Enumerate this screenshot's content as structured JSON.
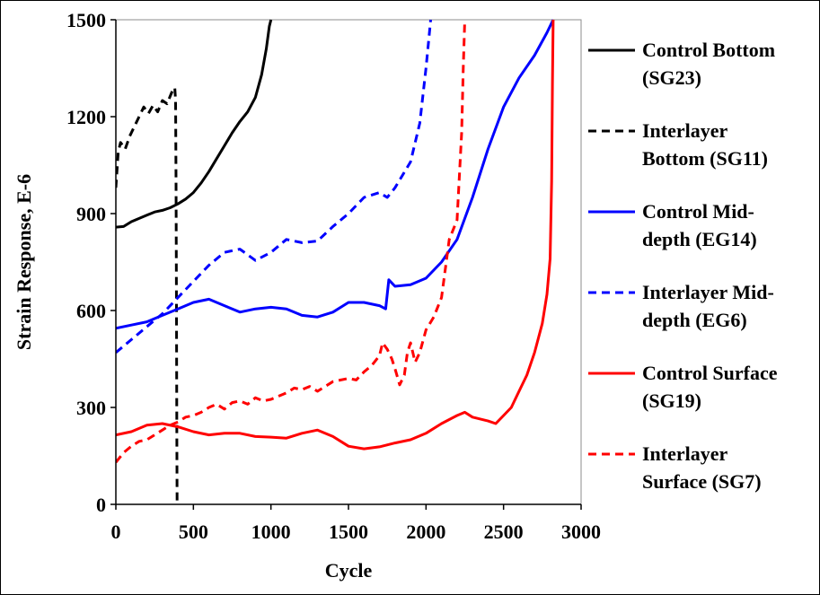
{
  "chart_data": {
    "type": "line",
    "title": "",
    "xlabel": "Cycle",
    "ylabel": "Strain Response, E-6",
    "xlim": [
      0,
      3000
    ],
    "ylim": [
      0,
      1500
    ],
    "xticks": [
      0,
      500,
      1000,
      1500,
      2000,
      2500,
      3000
    ],
    "yticks": [
      0,
      300,
      600,
      900,
      1200,
      1500
    ],
    "grid": false,
    "legend_position": "right",
    "series": [
      {
        "name": "Control Bottom\n(SG23)",
        "color": "#000000",
        "dash": "solid",
        "points": [
          [
            0,
            858
          ],
          [
            50,
            860
          ],
          [
            100,
            875
          ],
          [
            150,
            885
          ],
          [
            200,
            895
          ],
          [
            250,
            905
          ],
          [
            300,
            910
          ],
          [
            350,
            918
          ],
          [
            400,
            930
          ],
          [
            450,
            945
          ],
          [
            500,
            965
          ],
          [
            550,
            995
          ],
          [
            600,
            1030
          ],
          [
            650,
            1070
          ],
          [
            700,
            1110
          ],
          [
            750,
            1150
          ],
          [
            800,
            1185
          ],
          [
            850,
            1215
          ],
          [
            900,
            1260
          ],
          [
            940,
            1330
          ],
          [
            970,
            1410
          ],
          [
            990,
            1480
          ],
          [
            1000,
            1500
          ]
        ]
      },
      {
        "name": "Interlayer\nBottom (SG11)",
        "color": "#000000",
        "dash": "dashed",
        "points": [
          [
            0,
            980
          ],
          [
            15,
            1090
          ],
          [
            30,
            1120
          ],
          [
            60,
            1100
          ],
          [
            90,
            1140
          ],
          [
            120,
            1170
          ],
          [
            150,
            1200
          ],
          [
            180,
            1230
          ],
          [
            210,
            1210
          ],
          [
            240,
            1235
          ],
          [
            270,
            1215
          ],
          [
            300,
            1250
          ],
          [
            330,
            1240
          ],
          [
            360,
            1275
          ],
          [
            380,
            1290
          ],
          [
            385,
            1250
          ],
          [
            388,
            1000
          ],
          [
            391,
            600
          ],
          [
            393,
            200
          ],
          [
            395,
            0
          ]
        ]
      },
      {
        "name": "Control Mid-\ndepth (EG14)",
        "color": "#0000ff",
        "dash": "solid",
        "points": [
          [
            0,
            545
          ],
          [
            100,
            555
          ],
          [
            200,
            565
          ],
          [
            300,
            585
          ],
          [
            400,
            605
          ],
          [
            500,
            625
          ],
          [
            600,
            635
          ],
          [
            700,
            615
          ],
          [
            800,
            595
          ],
          [
            900,
            605
          ],
          [
            1000,
            610
          ],
          [
            1100,
            605
          ],
          [
            1200,
            585
          ],
          [
            1300,
            580
          ],
          [
            1400,
            595
          ],
          [
            1500,
            625
          ],
          [
            1600,
            625
          ],
          [
            1700,
            615
          ],
          [
            1740,
            605
          ],
          [
            1760,
            695
          ],
          [
            1800,
            675
          ],
          [
            1900,
            680
          ],
          [
            2000,
            700
          ],
          [
            2100,
            750
          ],
          [
            2200,
            820
          ],
          [
            2300,
            950
          ],
          [
            2400,
            1100
          ],
          [
            2500,
            1230
          ],
          [
            2600,
            1320
          ],
          [
            2700,
            1390
          ],
          [
            2780,
            1460
          ],
          [
            2820,
            1500
          ]
        ]
      },
      {
        "name": "Interlayer Mid-\ndepth (EG6)",
        "color": "#0000ff",
        "dash": "dashed",
        "points": [
          [
            0,
            470
          ],
          [
            100,
            510
          ],
          [
            200,
            550
          ],
          [
            300,
            590
          ],
          [
            400,
            640
          ],
          [
            500,
            690
          ],
          [
            600,
            740
          ],
          [
            700,
            780
          ],
          [
            800,
            790
          ],
          [
            900,
            755
          ],
          [
            1000,
            780
          ],
          [
            1100,
            820
          ],
          [
            1200,
            810
          ],
          [
            1300,
            815
          ],
          [
            1400,
            860
          ],
          [
            1500,
            900
          ],
          [
            1600,
            950
          ],
          [
            1700,
            965
          ],
          [
            1750,
            950
          ],
          [
            1800,
            980
          ],
          [
            1900,
            1060
          ],
          [
            1960,
            1180
          ],
          [
            2000,
            1350
          ],
          [
            2020,
            1450
          ],
          [
            2030,
            1500
          ]
        ]
      },
      {
        "name": "Control Surface\n(SG19)",
        "color": "#ff0000",
        "dash": "solid",
        "points": [
          [
            0,
            215
          ],
          [
            100,
            225
          ],
          [
            200,
            245
          ],
          [
            300,
            250
          ],
          [
            400,
            240
          ],
          [
            500,
            225
          ],
          [
            600,
            215
          ],
          [
            700,
            220
          ],
          [
            800,
            220
          ],
          [
            900,
            210
          ],
          [
            1000,
            208
          ],
          [
            1100,
            205
          ],
          [
            1200,
            220
          ],
          [
            1300,
            230
          ],
          [
            1400,
            210
          ],
          [
            1500,
            180
          ],
          [
            1600,
            172
          ],
          [
            1700,
            178
          ],
          [
            1800,
            190
          ],
          [
            1900,
            200
          ],
          [
            2000,
            220
          ],
          [
            2100,
            250
          ],
          [
            2200,
            275
          ],
          [
            2250,
            285
          ],
          [
            2300,
            270
          ],
          [
            2400,
            258
          ],
          [
            2450,
            250
          ],
          [
            2500,
            275
          ],
          [
            2550,
            300
          ],
          [
            2600,
            350
          ],
          [
            2650,
            400
          ],
          [
            2700,
            470
          ],
          [
            2750,
            560
          ],
          [
            2780,
            650
          ],
          [
            2800,
            760
          ],
          [
            2810,
            1000
          ],
          [
            2815,
            1300
          ],
          [
            2820,
            1500
          ]
        ]
      },
      {
        "name": "Interlayer\nSurface (SG7)",
        "color": "#ff0000",
        "dash": "dashed",
        "points": [
          [
            0,
            130
          ],
          [
            50,
            160
          ],
          [
            100,
            180
          ],
          [
            150,
            195
          ],
          [
            200,
            200
          ],
          [
            250,
            215
          ],
          [
            300,
            230
          ],
          [
            350,
            245
          ],
          [
            400,
            255
          ],
          [
            450,
            270
          ],
          [
            500,
            275
          ],
          [
            550,
            285
          ],
          [
            600,
            300
          ],
          [
            650,
            310
          ],
          [
            700,
            295
          ],
          [
            750,
            315
          ],
          [
            800,
            320
          ],
          [
            850,
            310
          ],
          [
            900,
            330
          ],
          [
            950,
            320
          ],
          [
            1000,
            325
          ],
          [
            1050,
            335
          ],
          [
            1100,
            345
          ],
          [
            1150,
            360
          ],
          [
            1200,
            355
          ],
          [
            1250,
            365
          ],
          [
            1300,
            350
          ],
          [
            1350,
            365
          ],
          [
            1400,
            380
          ],
          [
            1450,
            385
          ],
          [
            1500,
            390
          ],
          [
            1550,
            385
          ],
          [
            1600,
            410
          ],
          [
            1650,
            430
          ],
          [
            1700,
            460
          ],
          [
            1720,
            500
          ],
          [
            1750,
            480
          ],
          [
            1780,
            450
          ],
          [
            1800,
            420
          ],
          [
            1830,
            370
          ],
          [
            1860,
            400
          ],
          [
            1880,
            470
          ],
          [
            1900,
            500
          ],
          [
            1930,
            440
          ],
          [
            1960,
            470
          ],
          [
            2000,
            540
          ],
          [
            2050,
            580
          ],
          [
            2100,
            640
          ],
          [
            2150,
            820
          ],
          [
            2200,
            880
          ],
          [
            2230,
            1150
          ],
          [
            2240,
            1350
          ],
          [
            2250,
            1500
          ]
        ]
      }
    ]
  }
}
